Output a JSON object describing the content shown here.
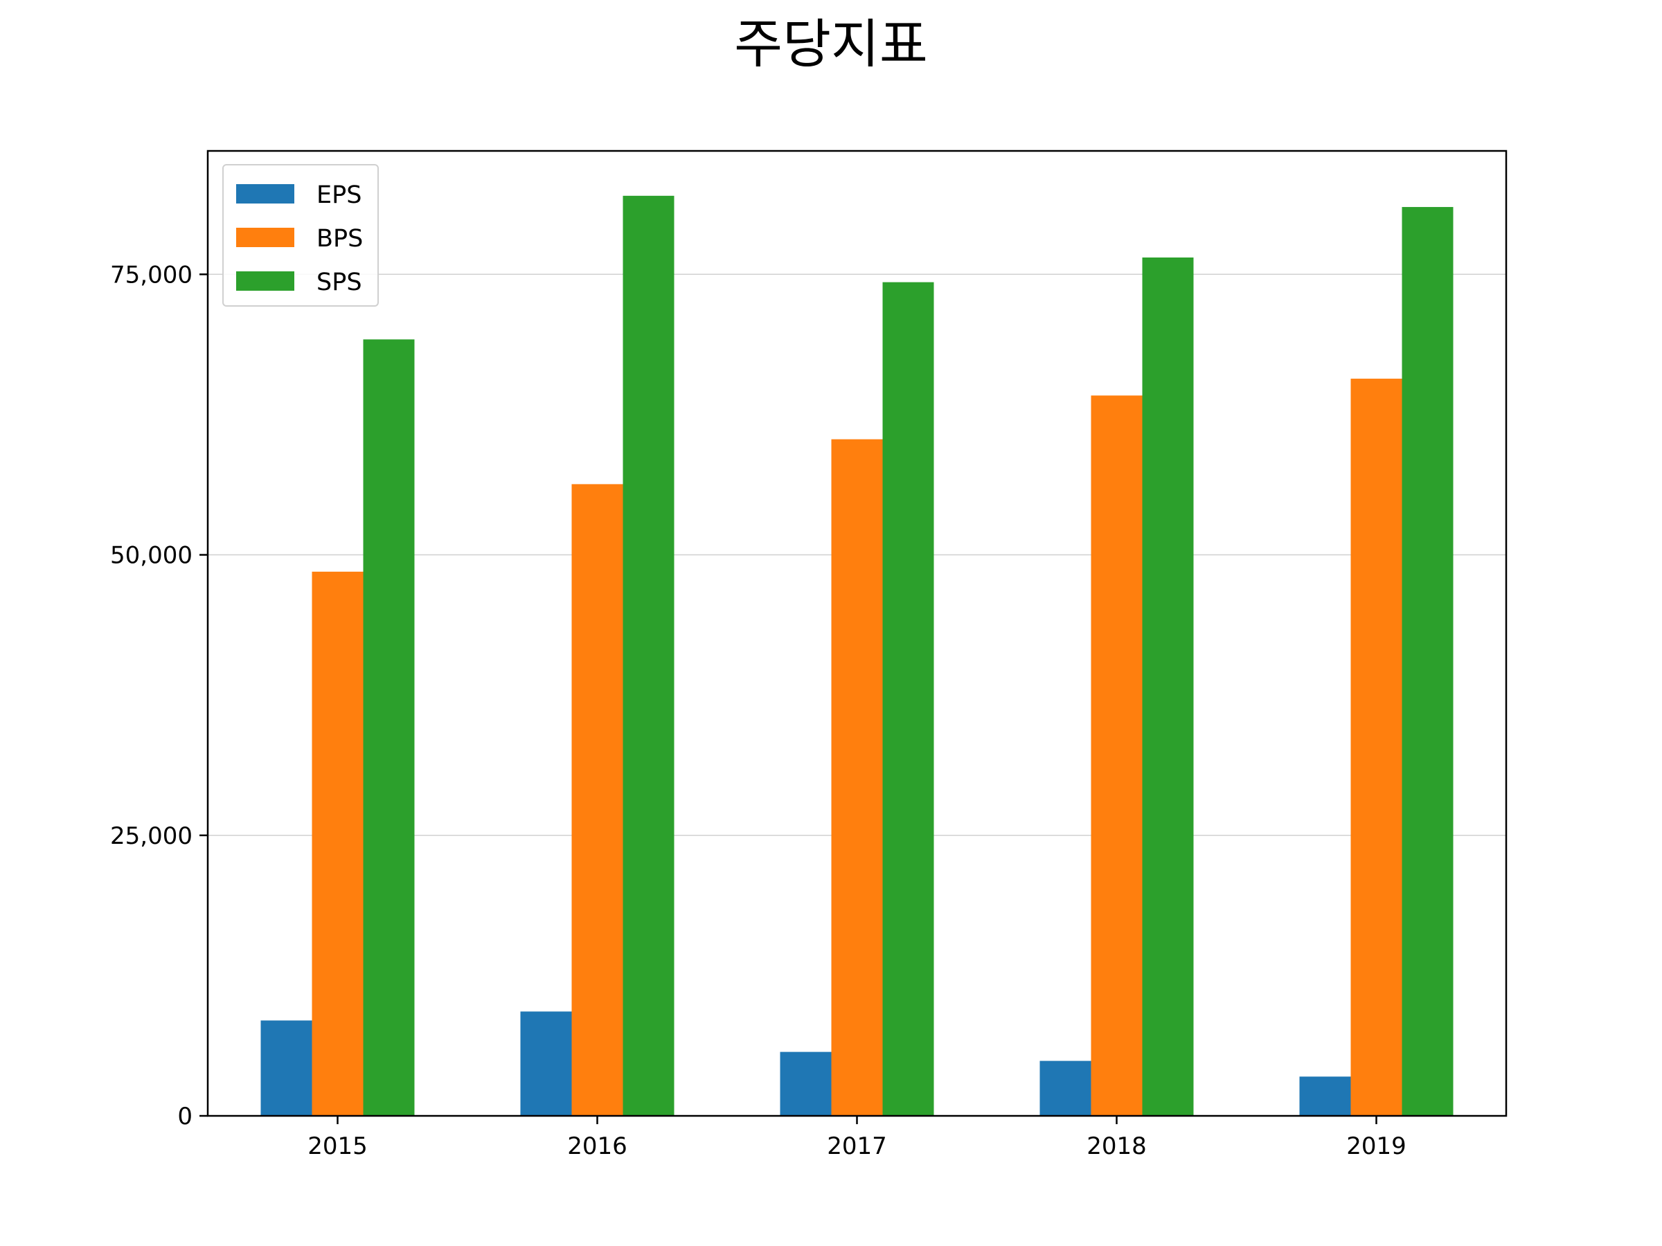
{
  "chart_data": {
    "type": "bar",
    "title": "주당지표",
    "xlabel": "",
    "ylabel": "",
    "categories": [
      "2015",
      "2016",
      "2017",
      "2018",
      "2019"
    ],
    "series": [
      {
        "name": "EPS",
        "color": "#1f77b4",
        "values": [
          8500,
          9300,
          5700,
          4900,
          3500
        ]
      },
      {
        "name": "BPS",
        "color": "#ff7f0e",
        "values": [
          48500,
          56300,
          60300,
          64200,
          65700
        ]
      },
      {
        "name": "SPS",
        "color": "#2ca02c",
        "values": [
          69200,
          82000,
          74300,
          76500,
          81000
        ]
      }
    ],
    "ylim": [
      0,
      86000
    ],
    "yticks": [
      0,
      25000,
      50000,
      75000
    ],
    "ytick_labels": [
      "0",
      "25,000",
      "50,000",
      "75,000"
    ],
    "grid": "y",
    "legend_position": "top-left"
  }
}
